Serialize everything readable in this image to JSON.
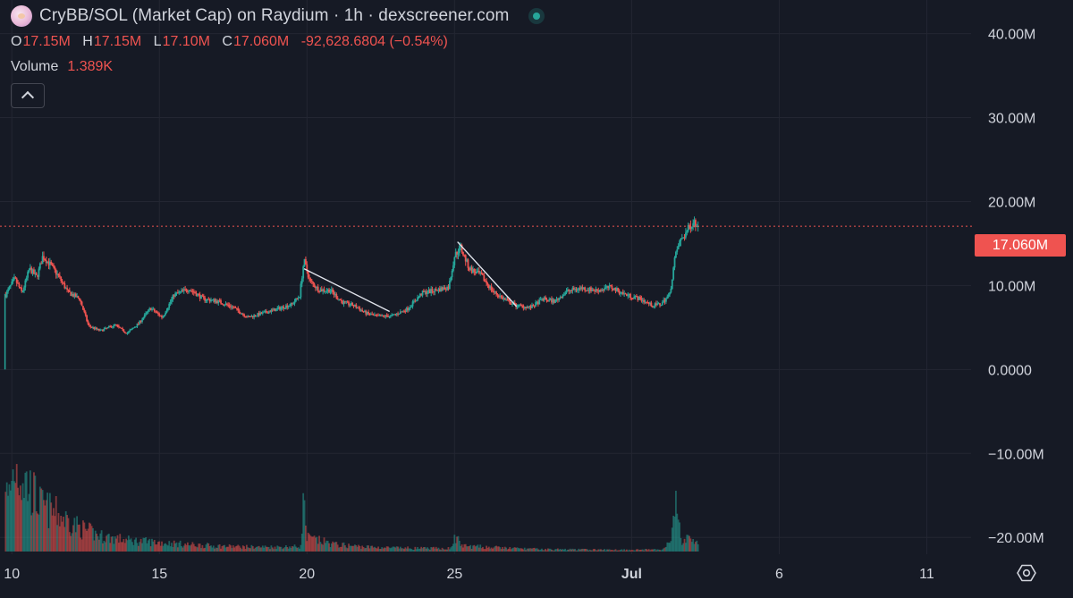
{
  "header": {
    "title": "CryBB/SOL (Market Cap) on Raydium · 1h · dexscreener.com"
  },
  "ohlc": {
    "open_label": "O",
    "open": "17.15M",
    "high_label": "H",
    "high": "17.15M",
    "low_label": "L",
    "low": "17.10M",
    "close_label": "C",
    "close": "17.060M",
    "change": "-92,628.6804 (−0.54%)"
  },
  "volume": {
    "label": "Volume",
    "value": "1.389K"
  },
  "last_price_tag": "17.060M",
  "colors": {
    "background": "#161a25",
    "up": "#26a69a",
    "down": "#ef5350",
    "grid": "#232632",
    "text": "#d1d4dc",
    "trendline": "#e0e3eb"
  },
  "icons": {
    "settings": "gear-icon",
    "collapse": "chevron-up-icon",
    "status": "online-dot-icon"
  },
  "chart_data": {
    "type": "candlestick",
    "timeframe": "1h",
    "y_ticks": [
      "40.00M",
      "30.00M",
      "20.00M",
      "10.00M",
      "0.0000",
      "−10.00M",
      "−20.00M"
    ],
    "y_tick_values": [
      40000000,
      30000000,
      20000000,
      10000000,
      0,
      -10000000,
      -20000000
    ],
    "ylim": [
      -22000000,
      44000000
    ],
    "x_ticks": [
      "10",
      "15",
      "20",
      "25",
      "Jul",
      "6",
      "11"
    ],
    "x_tick_days": [
      10,
      15,
      20,
      25,
      31,
      36,
      41
    ],
    "xlim_days": [
      9.6,
      42.5
    ],
    "last_price": 17060000,
    "price_path": [
      [
        9.75,
        0
      ],
      [
        9.78,
        8800000
      ],
      [
        9.9,
        9600000
      ],
      [
        10.1,
        10800000
      ],
      [
        10.35,
        9100000
      ],
      [
        10.6,
        12000000
      ],
      [
        10.85,
        11000000
      ],
      [
        11.05,
        13500000
      ],
      [
        11.3,
        12500000
      ],
      [
        11.6,
        11000000
      ],
      [
        11.9,
        9200000
      ],
      [
        12.3,
        8400000
      ],
      [
        12.6,
        5200000
      ],
      [
        13.0,
        4600000
      ],
      [
        13.5,
        5300000
      ],
      [
        13.9,
        4300000
      ],
      [
        14.3,
        5500000
      ],
      [
        14.7,
        7300000
      ],
      [
        15.1,
        6200000
      ],
      [
        15.5,
        8900000
      ],
      [
        16.0,
        9600000
      ],
      [
        16.5,
        8400000
      ],
      [
        17.0,
        8100000
      ],
      [
        17.5,
        7400000
      ],
      [
        18.0,
        6200000
      ],
      [
        18.5,
        6700000
      ],
      [
        19.0,
        7200000
      ],
      [
        19.5,
        7800000
      ],
      [
        19.75,
        8800000
      ],
      [
        19.9,
        13000000
      ],
      [
        20.1,
        10500000
      ],
      [
        20.4,
        9500000
      ],
      [
        20.8,
        9400000
      ],
      [
        21.2,
        8000000
      ],
      [
        21.6,
        7600000
      ],
      [
        22.0,
        6700000
      ],
      [
        22.4,
        6300000
      ],
      [
        22.9,
        6400000
      ],
      [
        23.4,
        7200000
      ],
      [
        23.9,
        9100000
      ],
      [
        24.3,
        9400000
      ],
      [
        24.8,
        9800000
      ],
      [
        25.0,
        13500000
      ],
      [
        25.2,
        14600000
      ],
      [
        25.5,
        12000000
      ],
      [
        25.9,
        11200000
      ],
      [
        26.3,
        9300000
      ],
      [
        26.7,
        8300000
      ],
      [
        27.1,
        7600000
      ],
      [
        27.6,
        7400000
      ],
      [
        28.0,
        8400000
      ],
      [
        28.4,
        8100000
      ],
      [
        28.8,
        9300000
      ],
      [
        29.3,
        9700000
      ],
      [
        29.8,
        9400000
      ],
      [
        30.3,
        9800000
      ],
      [
        30.8,
        8900000
      ],
      [
        31.3,
        8400000
      ],
      [
        31.7,
        7600000
      ],
      [
        32.0,
        7800000
      ],
      [
        32.3,
        9000000
      ],
      [
        32.45,
        13000000
      ],
      [
        32.6,
        15000000
      ],
      [
        32.9,
        16600000
      ],
      [
        33.1,
        17800000
      ],
      [
        33.25,
        17060000
      ]
    ],
    "volume_path": [
      [
        9.75,
        2400000
      ],
      [
        9.85,
        1000000
      ],
      [
        10.1,
        1900000
      ],
      [
        10.6,
        1400000
      ],
      [
        11.0,
        1000000
      ],
      [
        11.6,
        800000
      ],
      [
        12.3,
        520000
      ],
      [
        13.0,
        340000
      ],
      [
        14.0,
        240000
      ],
      [
        15.0,
        200000
      ],
      [
        16.0,
        150000
      ],
      [
        17.0,
        120000
      ],
      [
        18.0,
        100000
      ],
      [
        19.0,
        100000
      ],
      [
        19.8,
        110000
      ],
      [
        19.87,
        1150000
      ],
      [
        20.0,
        300000
      ],
      [
        21.0,
        150000
      ],
      [
        22.0,
        100000
      ],
      [
        23.0,
        80000
      ],
      [
        24.0,
        70000
      ],
      [
        24.9,
        70000
      ],
      [
        25.0,
        320000
      ],
      [
        25.3,
        120000
      ],
      [
        26.0,
        100000
      ],
      [
        27.0,
        70000
      ],
      [
        28.0,
        50000
      ],
      [
        30.0,
        40000
      ],
      [
        32.0,
        40000
      ],
      [
        32.3,
        240000
      ],
      [
        32.5,
        1000000
      ],
      [
        32.7,
        200000
      ],
      [
        33.0,
        300000
      ],
      [
        33.25,
        200000
      ]
    ],
    "volume_ylim": [
      0,
      3000000
    ],
    "trendlines": [
      {
        "from": [
          19.9,
          12000000
        ],
        "to": [
          22.8,
          6900000
        ]
      },
      {
        "from": [
          25.1,
          15200000
        ],
        "to": [
          27.1,
          7500000
        ]
      }
    ],
    "grid": true
  }
}
